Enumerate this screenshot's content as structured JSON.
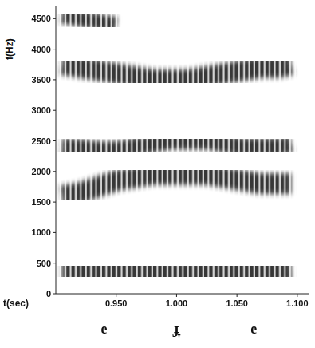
{
  "chart_data": {
    "type": "spectrogram",
    "xlabel": "t(sec)",
    "ylabel": "f(Hz)",
    "color": "#262626",
    "xlim": [
      0.9,
      1.11
    ],
    "xticks": [
      {
        "value": 0.95,
        "label": "0.950"
      },
      {
        "value": 1,
        "label": "1.000"
      },
      {
        "value": 1.05,
        "label": "1.050"
      },
      {
        "value": 1.1,
        "label": "1.100"
      }
    ],
    "ylim": [
      0,
      4700
    ],
    "yticks": [
      0,
      500,
      1000,
      1500,
      2000,
      2500,
      3000,
      3500,
      4000,
      4500
    ],
    "x": [
      0.905,
      0.92,
      0.935,
      0.95,
      0.965,
      0.98,
      0.995,
      1.01,
      1.025,
      1.04,
      1.055,
      1.07,
      1.085,
      1.095
    ],
    "series": [
      {
        "values": [
          420,
          420,
          400,
          380,
          360,
          330,
          300,
          300,
          320,
          350,
          380,
          400,
          420,
          430
        ]
      },
      {
        "values": [
          1600,
          1650,
          1750,
          1850,
          1900,
          1950,
          1950,
          1950,
          1950,
          1900,
          1850,
          1800,
          1800,
          1800
        ]
      },
      {
        "values": [
          2400,
          2380,
          2350,
          2350,
          2400,
          2450,
          2500,
          2500,
          2500,
          2450,
          2400,
          2400,
          2400,
          2450
        ]
      },
      {
        "values": [
          3750,
          3700,
          3650,
          3600,
          3550,
          3500,
          3500,
          3500,
          3550,
          3600,
          3650,
          3700,
          3700,
          3750
        ]
      },
      {
        "values": [
          4550,
          4500,
          4450,
          4400,
          null,
          null,
          null,
          null,
          null,
          null,
          null,
          null,
          null,
          null
        ]
      }
    ],
    "segments": [
      {
        "label": "e",
        "time": 0.94
      },
      {
        "label": "ɟ̞",
        "time": 1.0
      },
      {
        "label": "e",
        "time": 1.064
      }
    ]
  }
}
